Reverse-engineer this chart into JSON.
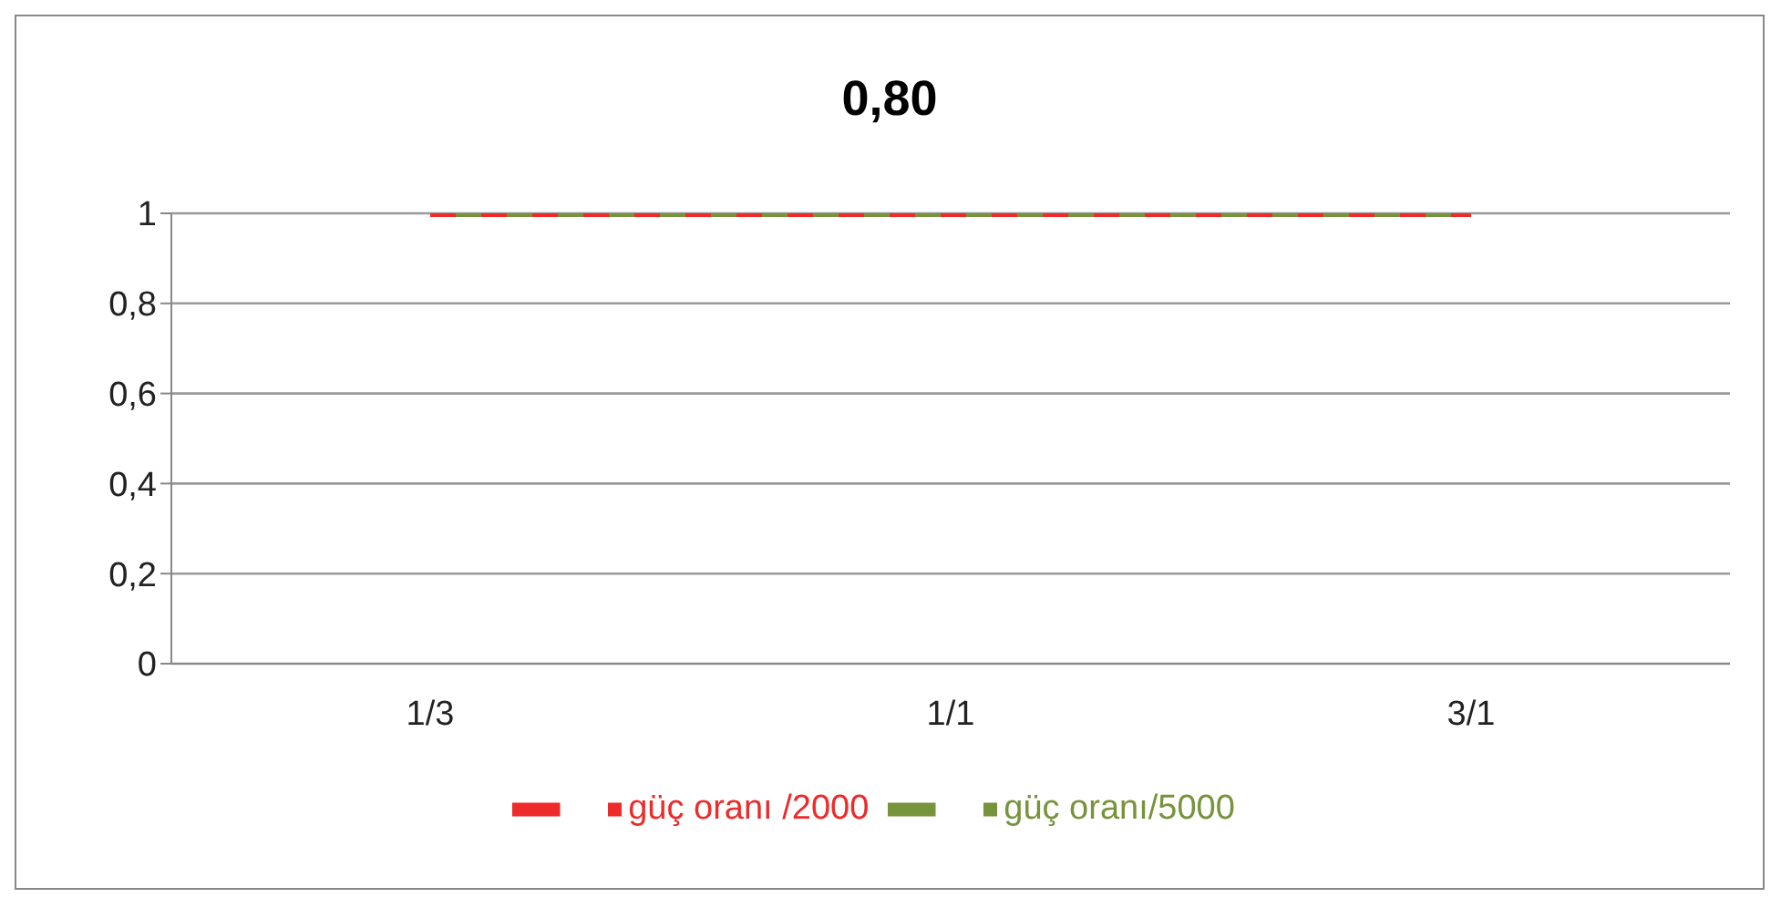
{
  "chart_data": {
    "type": "line",
    "title": "0,80",
    "categories": [
      "1/3",
      "1/1",
      "3/1"
    ],
    "series": [
      {
        "name": "güç oranı /2000",
        "color": "#ee2a2a",
        "values": [
          1,
          1,
          1
        ],
        "line_style": "dashed"
      },
      {
        "name": "güç oranı/5000",
        "color": "#77933c",
        "values": [
          1,
          1,
          1
        ],
        "line_style": "dashed"
      }
    ],
    "ylim": [
      0,
      1
    ],
    "yticks": [
      0,
      {
        "value": 0.2,
        "label": "0,2"
      },
      {
        "value": 0.4,
        "label": "0,4"
      },
      {
        "value": 0.6,
        "label": "0,6"
      },
      {
        "value": 0.8,
        "label": "0,8"
      },
      1
    ],
    "grid": "y",
    "legend": "bottom",
    "marker": "none"
  }
}
